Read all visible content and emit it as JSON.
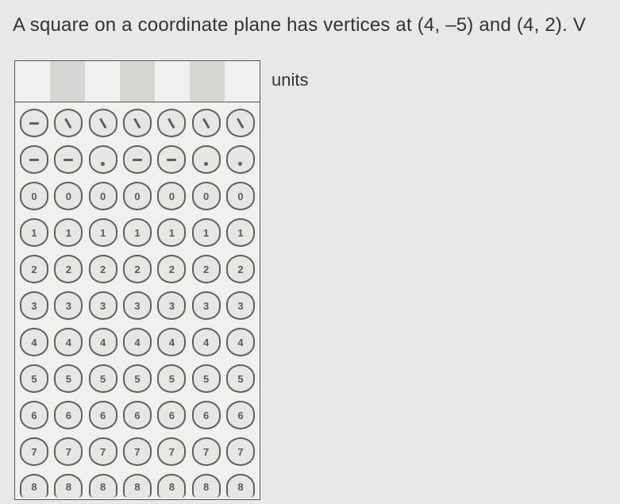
{
  "question": {
    "text": "A square on a coordinate plane has vertices at (4, –5) and (4, 2). V"
  },
  "units_label": "units",
  "grid": {
    "columns": 7,
    "shaded_columns": [
      1,
      3,
      5
    ],
    "symbol_rows": [
      {
        "type": "slash",
        "cells": [
          {
            "show": false,
            "k": "neg"
          },
          {
            "show": true,
            "k": "slash"
          },
          {
            "show": true,
            "k": "slash"
          },
          {
            "show": true,
            "k": "slash"
          },
          {
            "show": true,
            "k": "slash"
          },
          {
            "show": true,
            "k": "slash"
          },
          {
            "show": true,
            "k": "slash"
          }
        ]
      },
      {
        "type": "dot",
        "cells": [
          {
            "show": false,
            "k": "neg"
          },
          {
            "show": false,
            "k": "neg"
          },
          {
            "show": true,
            "k": "dot"
          },
          {
            "show": false,
            "k": "neg"
          },
          {
            "show": false,
            "k": "neg"
          },
          {
            "show": true,
            "k": "dot"
          },
          {
            "show": true,
            "k": "dot"
          }
        ]
      }
    ],
    "digit_rows": [
      "0",
      "1",
      "2",
      "3",
      "4",
      "5",
      "6",
      "7",
      "8"
    ],
    "bubble_colors": {
      "border": "#606060",
      "fill": "#e6e6e3",
      "text": "#5a5a5a"
    }
  }
}
